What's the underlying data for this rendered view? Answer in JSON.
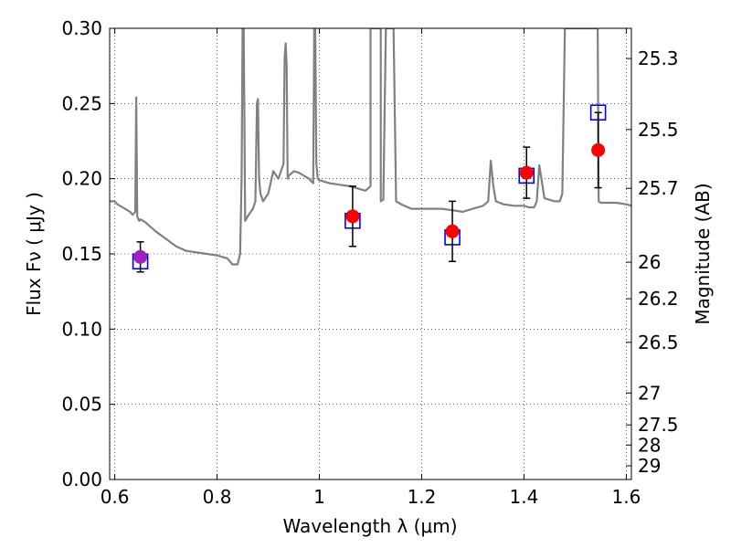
{
  "chart_data": {
    "type": "scatter",
    "xlabel": "Wavelength  λ (μm)",
    "ylabel": "Flux  Fν  ( μJy )",
    "ylabel_right": "Magnitude (AB)",
    "xlim": [
      0.59,
      1.61
    ],
    "ylim": [
      0.0,
      0.3
    ],
    "grid": true,
    "legend": "none",
    "x_ticks": [
      {
        "value": 0.6,
        "label": "0.6"
      },
      {
        "value": 0.8,
        "label": "0.8"
      },
      {
        "value": 1.0,
        "label": "1"
      },
      {
        "value": 1.2,
        "label": "1.2"
      },
      {
        "value": 1.4,
        "label": "1.4"
      },
      {
        "value": 1.6,
        "label": "1.6"
      }
    ],
    "y_ticks": [
      {
        "value": 0.0,
        "label": "0.00"
      },
      {
        "value": 0.05,
        "label": "0.05"
      },
      {
        "value": 0.1,
        "label": "0.10"
      },
      {
        "value": 0.15,
        "label": "0.15"
      },
      {
        "value": 0.2,
        "label": "0.20"
      },
      {
        "value": 0.25,
        "label": "0.25"
      },
      {
        "value": 0.3,
        "label": "0.30"
      }
    ],
    "mag_ticks": [
      {
        "flux": 0.2799,
        "label": "25.3"
      },
      {
        "flux": 0.2327,
        "label": "25.5"
      },
      {
        "flux": 0.1936,
        "label": "25.7"
      },
      {
        "flux": 0.1445,
        "label": "26"
      },
      {
        "flux": 0.1202,
        "label": "26.2"
      },
      {
        "flux": 0.0912,
        "label": "26.5"
      },
      {
        "flux": 0.0575,
        "label": "27"
      },
      {
        "flux": 0.0363,
        "label": "27.5"
      },
      {
        "flux": 0.0229,
        "label": "28"
      },
      {
        "flux": 0.0091,
        "label": "29"
      }
    ],
    "model_spectrum": {
      "color": "#808080",
      "x": [
        0.59,
        0.6,
        0.605,
        0.61,
        0.62,
        0.63,
        0.635,
        0.64,
        0.642,
        0.644,
        0.646,
        0.648,
        0.65,
        0.66,
        0.67,
        0.68,
        0.7,
        0.72,
        0.74,
        0.76,
        0.78,
        0.8,
        0.82,
        0.83,
        0.84,
        0.845,
        0.848,
        0.85,
        0.852,
        0.855,
        0.86,
        0.87,
        0.875,
        0.878,
        0.88,
        0.882,
        0.885,
        0.89,
        0.9,
        0.91,
        0.92,
        0.93,
        0.932,
        0.934,
        0.936,
        0.938,
        0.94,
        0.95,
        0.96,
        0.97,
        0.98,
        0.985,
        0.988,
        0.99,
        0.992,
        0.994,
        0.997,
        1.0,
        1.02,
        1.04,
        1.06,
        1.08,
        1.09,
        1.1,
        1.1,
        1.105,
        1.11,
        1.12,
        1.12,
        1.125,
        1.13,
        1.14,
        1.145,
        1.15,
        1.155,
        1.16,
        1.18,
        1.2,
        1.22,
        1.24,
        1.26,
        1.28,
        1.3,
        1.32,
        1.33,
        1.335,
        1.34,
        1.345,
        1.36,
        1.38,
        1.4,
        1.41,
        1.42,
        1.425,
        1.43,
        1.44,
        1.46,
        1.47,
        1.475,
        1.48,
        1.48,
        1.5,
        1.52,
        1.53,
        1.535,
        1.54,
        1.542,
        1.544,
        1.546,
        1.55,
        1.56,
        1.58,
        1.6,
        1.61
      ],
      "y": [
        0.185,
        0.185,
        0.183,
        0.182,
        0.18,
        0.178,
        0.176,
        0.178,
        0.254,
        0.175,
        0.173,
        0.172,
        0.173,
        0.171,
        0.168,
        0.165,
        0.16,
        0.155,
        0.152,
        0.151,
        0.15,
        0.149,
        0.147,
        0.143,
        0.143,
        0.15,
        0.2,
        0.3,
        0.3,
        0.172,
        0.175,
        0.18,
        0.185,
        0.25,
        0.253,
        0.2,
        0.19,
        0.185,
        0.19,
        0.205,
        0.2,
        0.21,
        0.28,
        0.29,
        0.276,
        0.2,
        0.202,
        0.205,
        0.204,
        0.202,
        0.2,
        0.198,
        0.197,
        0.3,
        0.3,
        0.21,
        0.2,
        0.199,
        0.197,
        0.196,
        0.195,
        0.193,
        0.192,
        0.195,
        0.3,
        0.3,
        0.3,
        0.3,
        0.185,
        0.186,
        0.3,
        0.3,
        0.3,
        0.185,
        0.184,
        0.183,
        0.18,
        0.18,
        0.18,
        0.18,
        0.179,
        0.178,
        0.18,
        0.182,
        0.185,
        0.212,
        0.195,
        0.185,
        0.183,
        0.182,
        0.182,
        0.181,
        0.181,
        0.185,
        0.209,
        0.187,
        0.185,
        0.185,
        0.19,
        0.3,
        0.3,
        0.3,
        0.3,
        0.3,
        0.3,
        0.3,
        0.3,
        0.3,
        0.185,
        0.184,
        0.184,
        0.184,
        0.183,
        0.182
      ]
    },
    "series": [
      {
        "marker": "open-square",
        "color": "#0000ff",
        "x": [
          0.65,
          1.065,
          1.26,
          1.405,
          1.545
        ],
        "y": [
          0.145,
          0.172,
          0.161,
          0.202,
          0.244
        ]
      },
      {
        "marker": "filled-circle",
        "color": "#ff0000",
        "x": [
          0.65,
          1.065,
          1.26,
          1.405,
          1.545
        ],
        "y": [
          0.148,
          0.175,
          0.165,
          0.204,
          0.219
        ],
        "yerr": [
          0.01,
          0.02,
          0.02,
          0.017,
          0.025
        ],
        "point_colors": [
          "#a020c0",
          "#ff0000",
          "#ff0000",
          "#ff0000",
          "#ff0000"
        ]
      }
    ]
  }
}
